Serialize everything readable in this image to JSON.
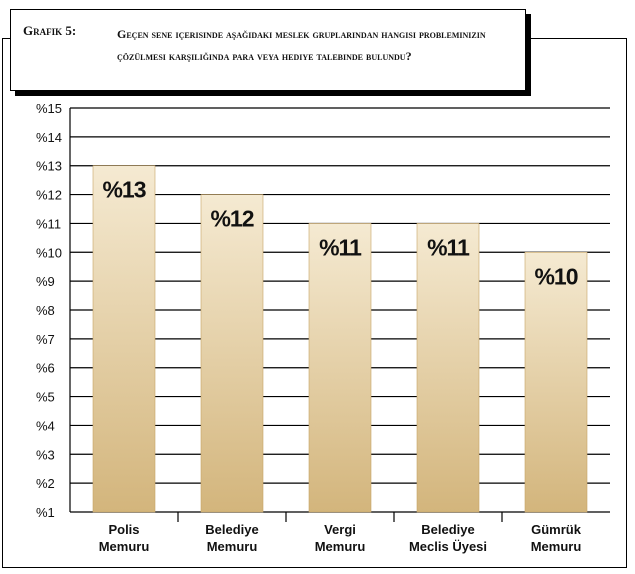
{
  "header": {
    "prefix": "Grafik 5:",
    "question": "Geçen sene içerisinde aşağıdaki meslek gruplarından hangisi probleminizin çözülmesi karşılığında para veya hediye talebinde bulundu?"
  },
  "colors": {
    "bar_top": "#f5ead2",
    "bar_bottom": "#d3b57c",
    "bar_edge": "#c6a466",
    "grid": "#000000"
  },
  "chart_data": {
    "type": "bar",
    "title": "",
    "xlabel": "",
    "ylabel": "",
    "ylim": [
      1,
      15
    ],
    "yticks": [
      "%1",
      "%2",
      "%3",
      "%4",
      "%5",
      "%6",
      "%7",
      "%8",
      "%9",
      "%10",
      "%11",
      "%12",
      "%13",
      "%14",
      "%15"
    ],
    "grid": true,
    "categories": [
      [
        "Polis",
        "Memuru"
      ],
      [
        "Belediye",
        "Memuru"
      ],
      [
        "Vergi",
        "Memuru"
      ],
      [
        "Belediye",
        "Meclis Üyesi"
      ],
      [
        "Gümrük",
        "Memuru"
      ]
    ],
    "values": [
      13,
      12,
      11,
      11,
      10
    ],
    "data_labels": [
      "%13",
      "%12",
      "%11",
      "%11",
      "%10"
    ]
  }
}
